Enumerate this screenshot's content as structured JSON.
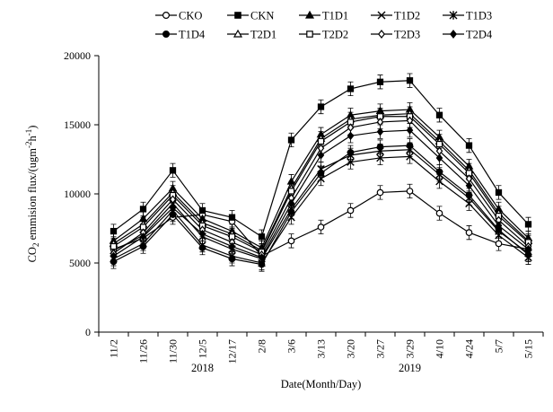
{
  "chart_data": {
    "type": "line",
    "xlabel": "Date(Month/Day)",
    "ylabel_main": "CO",
    "ylabel_sub": "2",
    "ylabel_rest": " emmision flux/(ugm",
    "ylabel_exp1": "-2",
    "ylabel_mid": "h",
    "ylabel_exp2": "-1",
    "ylabel_end": ")",
    "x": [
      "11/2",
      "11/26",
      "11/30",
      "12/5",
      "12/17",
      "2/8",
      "3/6",
      "3/13",
      "3/20",
      "3/27",
      "3/29",
      "4/10",
      "4/24",
      "5/7",
      "5/15"
    ],
    "year_labels": [
      {
        "text": "2018",
        "after_index": 3
      },
      {
        "text": "2019",
        "after_index": 10
      }
    ],
    "ylim": [
      0,
      20000
    ],
    "yticks": [
      0,
      5000,
      10000,
      15000,
      20000
    ],
    "grid": false,
    "legend_position": "top-right",
    "error_bar": 500,
    "series": [
      {
        "name": "CKO",
        "marker": "circle-open",
        "values": [
          6000,
          6800,
          8300,
          8500,
          8000,
          5500,
          6600,
          7600,
          8800,
          10100,
          10200,
          8600,
          7200,
          6400,
          6000
        ]
      },
      {
        "name": "CKN",
        "marker": "square-filled",
        "values": [
          7300,
          8900,
          11700,
          8800,
          8300,
          6900,
          13900,
          16300,
          17600,
          18100,
          18200,
          15700,
          13500,
          10100,
          7800
        ]
      },
      {
        "name": "T1D1",
        "marker": "triangle-filled",
        "values": [
          6600,
          8200,
          10400,
          8200,
          7300,
          6100,
          10900,
          14300,
          15700,
          16000,
          16100,
          14100,
          12000,
          8900,
          6800
        ]
      },
      {
        "name": "T1D2",
        "marker": "x",
        "values": [
          5300,
          6400,
          8800,
          6300,
          5500,
          5000,
          8300,
          11100,
          12300,
          12600,
          12700,
          10900,
          9300,
          7000,
          5400
        ]
      },
      {
        "name": "T1D3",
        "marker": "asterisk",
        "values": [
          5900,
          7000,
          9300,
          6900,
          6000,
          5300,
          8900,
          11800,
          12800,
          13100,
          13200,
          11400,
          9700,
          7300,
          5700
        ]
      },
      {
        "name": "T1D4",
        "marker": "circle-filled",
        "values": [
          5100,
          6200,
          8500,
          6100,
          5300,
          4900,
          8700,
          11500,
          13000,
          13400,
          13500,
          11600,
          9900,
          7400,
          5600
        ]
      },
      {
        "name": "T2D1",
        "marker": "triangle-open",
        "values": [
          6400,
          7800,
          10100,
          7900,
          7100,
          5900,
          10400,
          14000,
          15400,
          15700,
          15800,
          13800,
          11700,
          8600,
          6600
        ]
      },
      {
        "name": "T2D2",
        "marker": "square-open",
        "values": [
          6200,
          7600,
          9900,
          7700,
          6900,
          5800,
          10200,
          13800,
          15200,
          15600,
          15600,
          13600,
          11500,
          8400,
          6500
        ]
      },
      {
        "name": "T2D3",
        "marker": "diamond-open",
        "values": [
          5700,
          7200,
          9600,
          7400,
          6500,
          5600,
          9700,
          13300,
          14800,
          15200,
          15300,
          13100,
          11100,
          8100,
          6200
        ]
      },
      {
        "name": "T2D4",
        "marker": "diamond-filled",
        "values": [
          5500,
          6900,
          9000,
          7100,
          6200,
          5400,
          9300,
          12800,
          14200,
          14500,
          14600,
          12600,
          10600,
          7700,
          6000
        ]
      }
    ]
  }
}
